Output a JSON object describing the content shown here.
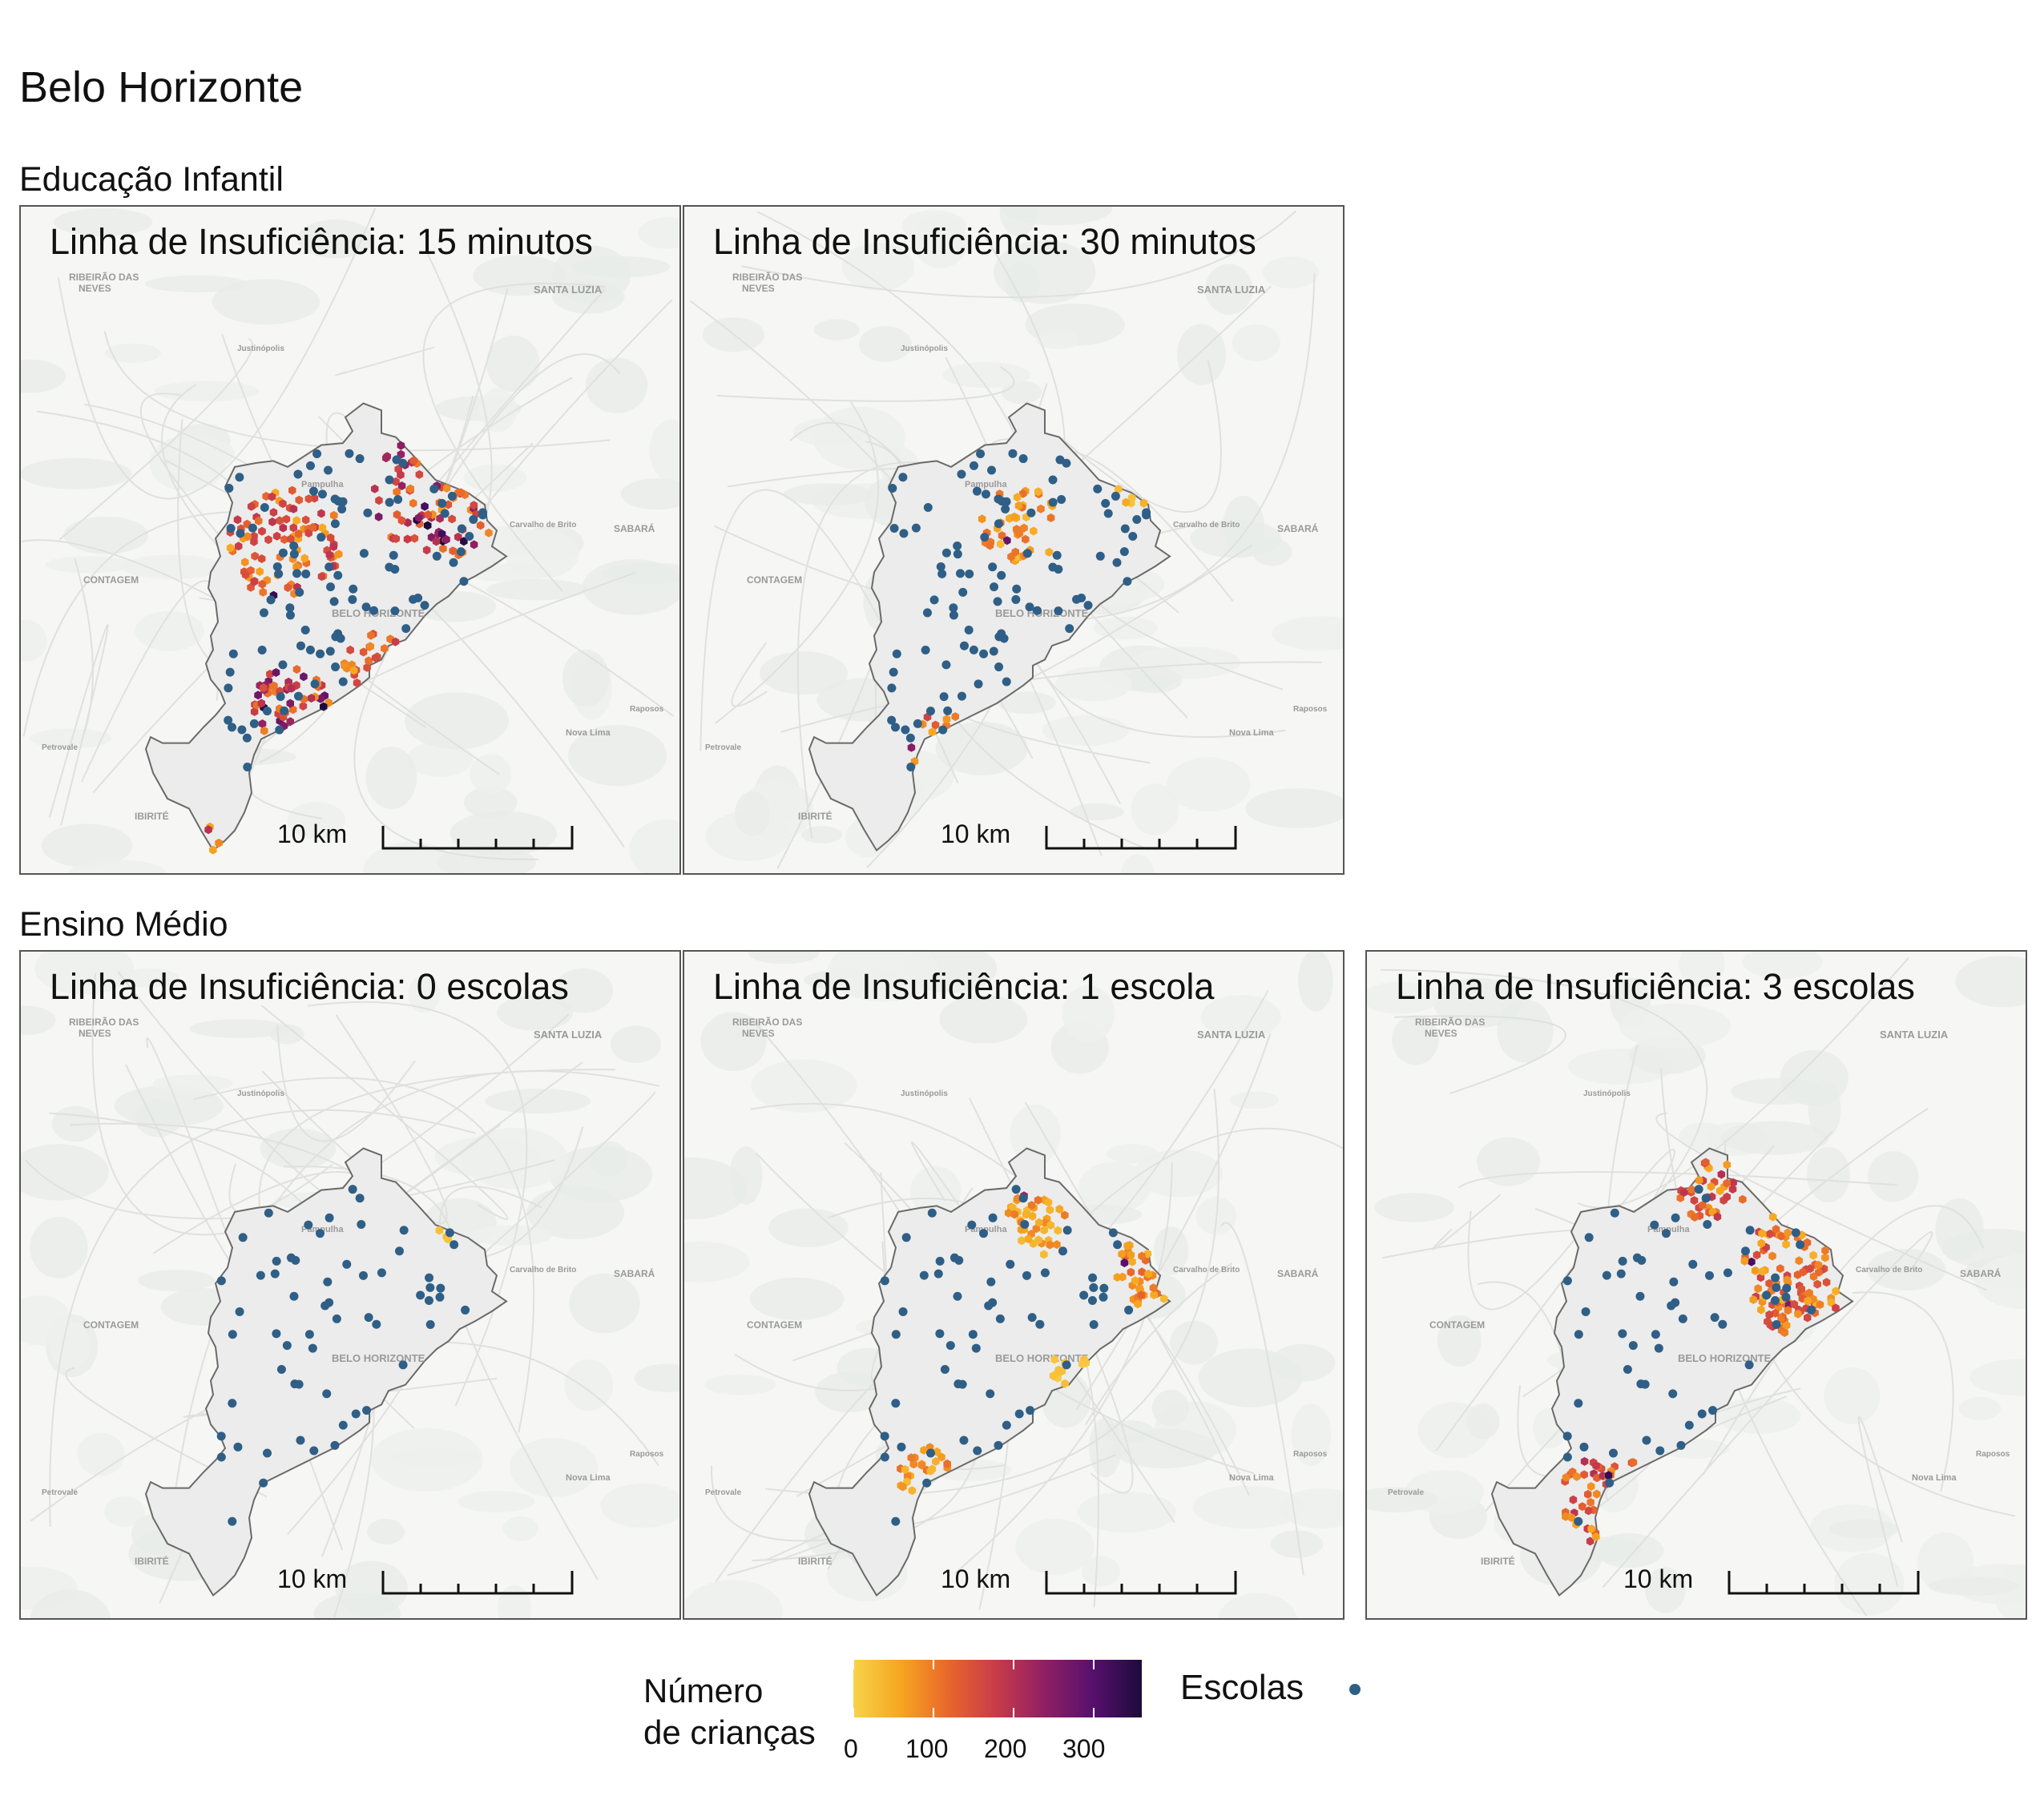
{
  "title": "Belo Horizonte",
  "colors": {
    "school_dot": "#2f5f86",
    "city_fill": "#ececec",
    "city_border": "#6a6a6a",
    "background": "#f6f6f5",
    "scale": [
      "#f7d34a",
      "#f6a51f",
      "#e8652c",
      "#c73a4a",
      "#8e1f63",
      "#56106d",
      "#1c0b3a"
    ]
  },
  "basemap_labels": {
    "ribeirao": "RIBEIRÃO DAS",
    "neves": "NEVES",
    "santa_luzia": "SANTA LUZIA",
    "justinopolis": "Justinópolis",
    "pampulha": "Pampulha",
    "contagem": "CONTAGEM",
    "belo_horizonte": "BELO HORIZONTE",
    "sabara": "SABARÁ",
    "ibirite": "IBIRITÉ",
    "nova_lima": "Nova Lima",
    "raposos": "Raposos",
    "petrovale": "Petrovale",
    "carvalho": "Carvalho de Brito"
  },
  "sections": [
    {
      "title": "Educação Infantil",
      "panels": [
        {
          "title": "Linha de Insuficiência: 15 minutos",
          "scale_label": "10 km"
        },
        {
          "title": "Linha de Insuficiência: 30 minutos",
          "scale_label": "10 km"
        }
      ]
    },
    {
      "title": "Ensino Médio",
      "panels": [
        {
          "title": "Linha de Insuficiência: 0 escolas",
          "scale_label": "10 km"
        },
        {
          "title": "Linha de Insuficiência: 1 escola",
          "scale_label": "10 km"
        },
        {
          "title": "Linha de Insuficiência: 3 escolas",
          "scale_label": "10 km"
        }
      ]
    }
  ],
  "legend": {
    "fill_title_line1": "Número",
    "fill_title_line2": "de crianças",
    "fill_ticks": [
      "0",
      "100",
      "200",
      "300"
    ],
    "fill_range": [
      0,
      360
    ],
    "points_title": "Escolas"
  }
}
